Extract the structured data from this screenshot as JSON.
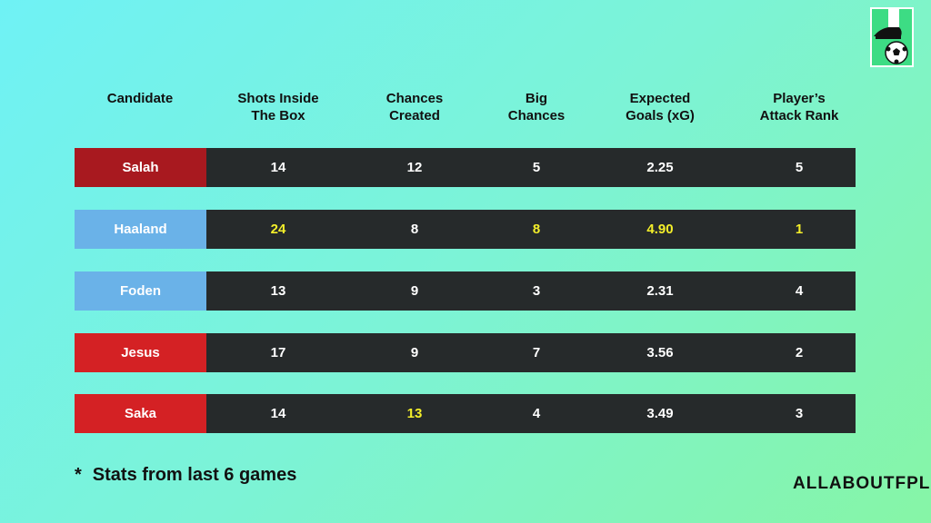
{
  "logo": {
    "icon": "boot-and-ball-icon",
    "colors": {
      "bg": "#1a2124",
      "border": "#ffffff",
      "ball": "#ffffff",
      "accent": "#3ddc84"
    }
  },
  "brand": "ALLABOUTFPL",
  "footnote": {
    "star": "*",
    "text": "Stats from last 6 games"
  },
  "highlight_color": "#f4ef2a",
  "chart_data": {
    "type": "table",
    "title": "",
    "columns": [
      "Candidate",
      "Shots Inside\nThe Box",
      "Chances\nCreated",
      "Big\nChances",
      "Expected\nGoals (xG)",
      "Player’s\nAttack Rank"
    ],
    "rows": [
      {
        "name": "Salah",
        "color": "#a8191f",
        "values": [
          "14",
          "12",
          "5",
          "2.25",
          "5"
        ],
        "highlight": [
          false,
          false,
          false,
          false,
          false
        ]
      },
      {
        "name": "Haaland",
        "color": "#6ab2e8",
        "values": [
          "24",
          "8",
          "8",
          "4.90",
          "1"
        ],
        "highlight": [
          true,
          false,
          true,
          true,
          true
        ]
      },
      {
        "name": "Foden",
        "color": "#6ab2e8",
        "values": [
          "13",
          "9",
          "3",
          "2.31",
          "4"
        ],
        "highlight": [
          false,
          false,
          false,
          false,
          false
        ]
      },
      {
        "name": "Jesus",
        "color": "#d42124",
        "values": [
          "17",
          "9",
          "7",
          "3.56",
          "2"
        ],
        "highlight": [
          false,
          false,
          false,
          false,
          false
        ]
      },
      {
        "name": "Saka",
        "color": "#d42124",
        "values": [
          "14",
          "13",
          "4",
          "3.49",
          "3"
        ],
        "highlight": [
          false,
          true,
          false,
          false,
          false
        ]
      }
    ]
  }
}
